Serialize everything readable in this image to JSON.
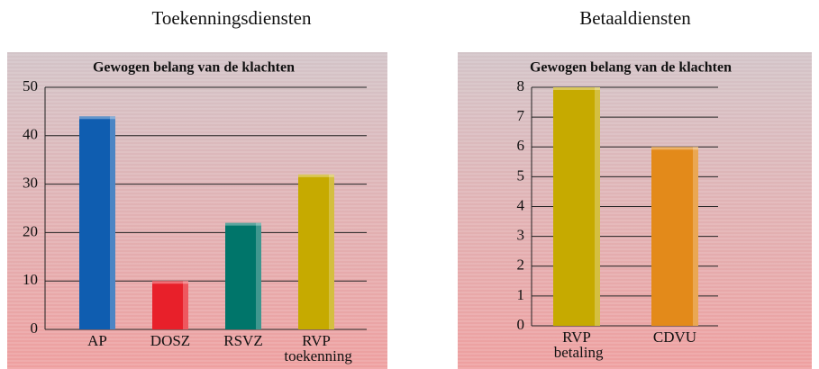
{
  "chart_data": [
    {
      "type": "bar",
      "title": "Toekenningsdiensten",
      "subtitle": "Gewogen belang van de klachten",
      "categories": [
        "AP",
        "DOSZ",
        "RSVZ",
        "RVP toekenning"
      ],
      "values": [
        44,
        10,
        22,
        32
      ],
      "colors": [
        "#0f5db0",
        "#e8202a",
        "#00756a",
        "#c6aa00"
      ],
      "ylim": [
        0,
        50
      ],
      "yticks": [
        0,
        10,
        20,
        30,
        40,
        50
      ],
      "grid": true
    },
    {
      "type": "bar",
      "title": "Betaaldiensten",
      "subtitle": "Gewogen belang van de klachten",
      "categories": [
        "RVP betaling",
        "CDVU"
      ],
      "values": [
        8,
        6
      ],
      "colors": [
        "#c6aa00",
        "#e38a1a"
      ],
      "ylim": [
        0,
        8
      ],
      "yticks": [
        0,
        1,
        2,
        3,
        4,
        5,
        6,
        7,
        8
      ],
      "grid": true
    }
  ]
}
